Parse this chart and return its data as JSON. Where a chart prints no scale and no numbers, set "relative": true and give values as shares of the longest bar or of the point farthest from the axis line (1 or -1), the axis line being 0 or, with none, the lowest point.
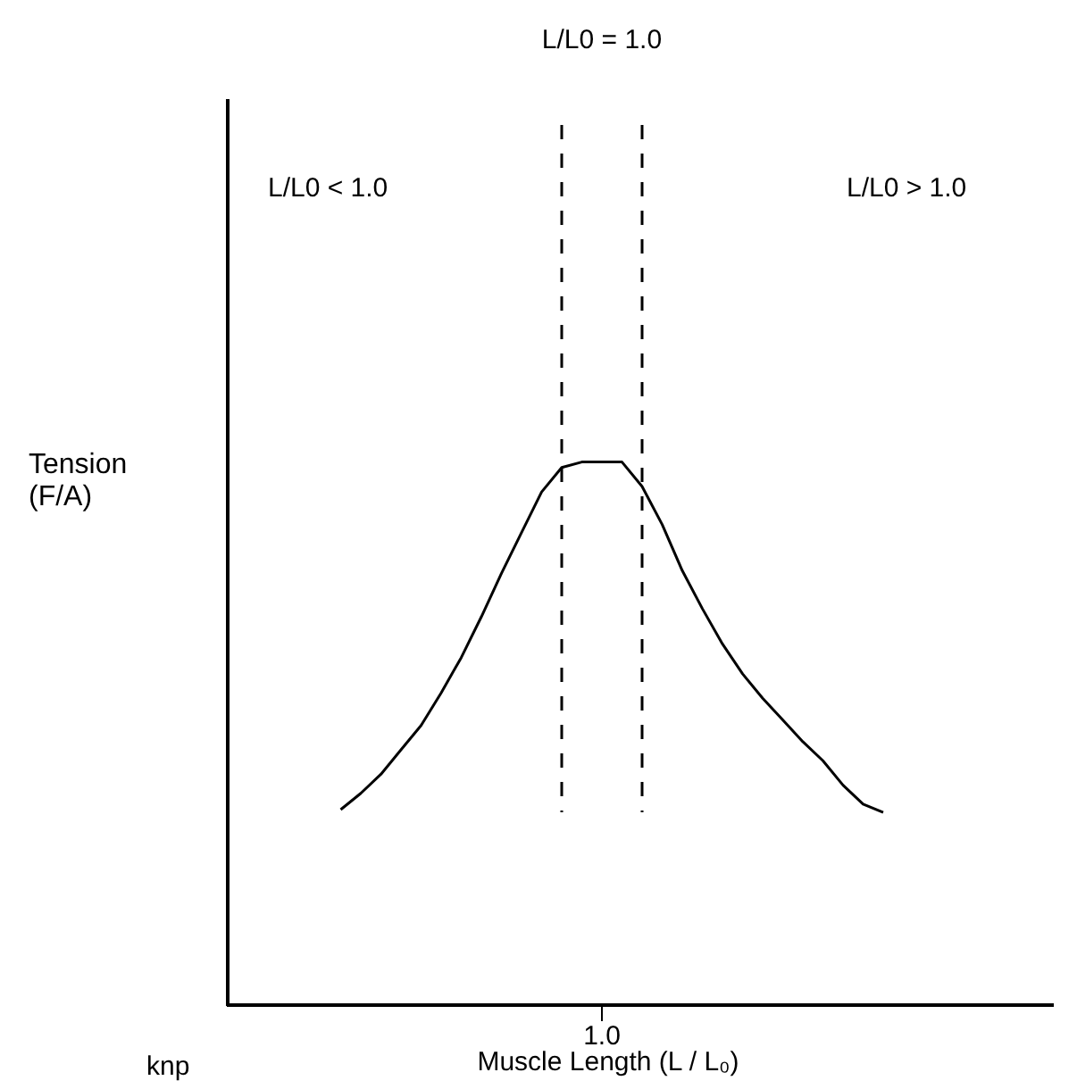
{
  "chart_data": {
    "type": "line",
    "relative": true,
    "xlabel": "Muscle Length (L / L₀)",
    "categories": [
      null,
      null,
      null,
      null,
      null,
      null,
      null,
      null,
      null,
      null,
      null,
      null,
      null,
      null,
      null,
      null,
      null,
      null,
      null,
      null,
      null,
      null,
      null,
      null,
      null,
      null,
      null,
      null
    ],
    "series": [
      {
        "color": "#000000",
        "values": [
          0.36,
          0.39,
          0.425,
          0.47,
          0.515,
          0.575,
          0.64,
          0.715,
          0.795,
          0.87,
          0.945,
          0.99,
          1,
          1,
          1,
          0.955,
          0.885,
          0.8,
          0.73,
          0.665,
          0.61,
          0.565,
          0.525,
          0.485,
          0.45,
          0.405,
          0.37,
          0.355
        ]
      }
    ],
    "tick_labels": false,
    "grid": false,
    "marker": "none",
    "line_style": "solid",
    "ref_lines": [
      {
        "axis": "x",
        "color": "#000000",
        "line_style": "dashed"
      },
      {
        "axis": "x",
        "color": "#000000",
        "line_style": "dashed"
      }
    ],
    "annotations": [
      "L/L0 = 1.0",
      "L/L0 < 1.0",
      "L/L0 > 1.0",
      "knp",
      "1.0",
      "Tension\n(F/A)"
    ]
  }
}
